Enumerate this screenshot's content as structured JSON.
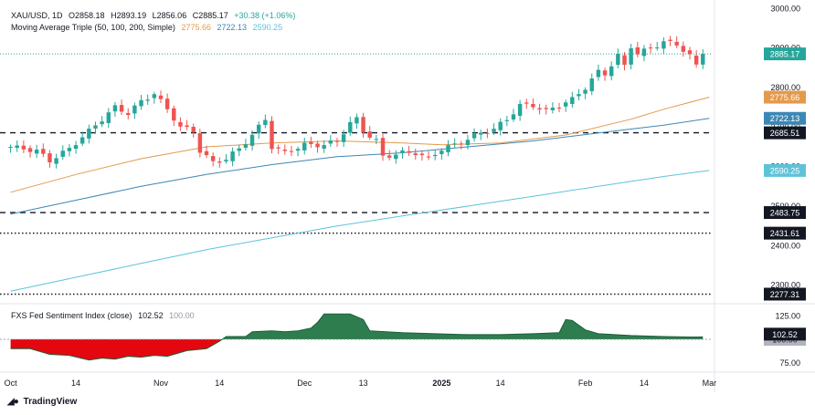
{
  "header": {
    "symbol": "XAU/USD, 1D",
    "open": "O2858.18",
    "high": "H2893.19",
    "low": "L2856.06",
    "close": "C2885.17",
    "change": "+30.38 (+1.06%)",
    "ma_label": "Moving Average Triple (50, 100, 200, Simple)",
    "ma50_value": "2775.66",
    "ma100_value": "2722.13",
    "ma200_value": "2590.25"
  },
  "sentiment_pane": {
    "title": "FXS Fed Sentiment Index (close)",
    "value": "102.52",
    "baseline": "100.00"
  },
  "footer": {
    "brand": "TradingView"
  },
  "colors": {
    "up": "#26a69a",
    "down": "#ef5350",
    "ma50": "#e39a4c",
    "ma100": "#3d87b5",
    "ma200": "#5ec3d9",
    "sentiment_pos": "#2e7d4f",
    "sentiment_neg": "#e5070f",
    "axis_text": "#131722"
  },
  "chart_data": {
    "type": "candlestick",
    "instrument": "XAU/USD",
    "timeframe": "1D",
    "y_axis_ticks": [
      2300.0,
      2400.0,
      2500.0,
      2600.0,
      2700.0,
      2800.0,
      2900.0,
      3000.0
    ],
    "ylim": [
      2260,
      3010
    ],
    "x_axis_labels": [
      {
        "label": "Oct",
        "bar": 0
      },
      {
        "label": "14",
        "bar": 10
      },
      {
        "label": "Nov",
        "bar": 23
      },
      {
        "label": "14",
        "bar": 32
      },
      {
        "label": "Dec",
        "bar": 45
      },
      {
        "label": "13",
        "bar": 54
      },
      {
        "label": "2025",
        "bar": 66
      },
      {
        "label": "14",
        "bar": 75
      },
      {
        "label": "Feb",
        "bar": 88
      },
      {
        "label": "14",
        "bar": 97
      },
      {
        "label": "Mar",
        "bar": 107
      }
    ],
    "horizontal_levels": [
      {
        "value": 2685.51,
        "label": "2685.51",
        "style": "dashed"
      },
      {
        "value": 2483.75,
        "label": "2483.75",
        "style": "dashed"
      },
      {
        "value": 2431.61,
        "label": "2431.61",
        "style": "dotted"
      },
      {
        "value": 2277.31,
        "label": "2277.31",
        "style": "dotted"
      }
    ],
    "last_price": {
      "value": 2885.17,
      "label": "2885.17"
    },
    "moving_averages": [
      {
        "name": "MA 50",
        "period": 50,
        "last": 2775.66,
        "label": "2775.66",
        "points": [
          [
            0,
            2535
          ],
          [
            10,
            2580
          ],
          [
            20,
            2620
          ],
          [
            30,
            2650
          ],
          [
            40,
            2660
          ],
          [
            50,
            2665
          ],
          [
            60,
            2660
          ],
          [
            66,
            2655
          ],
          [
            75,
            2660
          ],
          [
            85,
            2680
          ],
          [
            95,
            2720
          ],
          [
            100,
            2745
          ],
          [
            107,
            2775.66
          ]
        ]
      },
      {
        "name": "MA 100",
        "period": 100,
        "last": 2722.13,
        "label": "2722.13",
        "points": [
          [
            0,
            2480
          ],
          [
            10,
            2515
          ],
          [
            20,
            2550
          ],
          [
            30,
            2580
          ],
          [
            40,
            2605
          ],
          [
            50,
            2625
          ],
          [
            60,
            2635
          ],
          [
            70,
            2650
          ],
          [
            80,
            2665
          ],
          [
            90,
            2685
          ],
          [
            100,
            2705
          ],
          [
            107,
            2722.13
          ]
        ]
      },
      {
        "name": "MA 200",
        "period": 200,
        "last": 2590.25,
        "label": "2590.25",
        "points": [
          [
            0,
            2285
          ],
          [
            10,
            2320
          ],
          [
            20,
            2355
          ],
          [
            30,
            2390
          ],
          [
            40,
            2420
          ],
          [
            50,
            2450
          ],
          [
            60,
            2475
          ],
          [
            70,
            2500
          ],
          [
            80,
            2525
          ],
          [
            90,
            2550
          ],
          [
            100,
            2575
          ],
          [
            107,
            2590.25
          ]
        ]
      }
    ],
    "close_path": [
      [
        0,
        2650
      ],
      [
        4,
        2640
      ],
      [
        6,
        2615
      ],
      [
        9,
        2645
      ],
      [
        12,
        2690
      ],
      [
        14,
        2720
      ],
      [
        16,
        2750
      ],
      [
        18,
        2735
      ],
      [
        20,
        2765
      ],
      [
        22,
        2785
      ],
      [
        24,
        2745
      ],
      [
        26,
        2700
      ],
      [
        28,
        2690
      ],
      [
        29,
        2640
      ],
      [
        31,
        2610
      ],
      [
        33,
        2620
      ],
      [
        35,
        2645
      ],
      [
        37,
        2680
      ],
      [
        39,
        2720
      ],
      [
        40,
        2650
      ],
      [
        42,
        2635
      ],
      [
        45,
        2655
      ],
      [
        48,
        2655
      ],
      [
        50,
        2665
      ],
      [
        52,
        2710
      ],
      [
        53,
        2720
      ],
      [
        54,
        2690
      ],
      [
        56,
        2665
      ],
      [
        57,
        2625
      ],
      [
        60,
        2635
      ],
      [
        62,
        2635
      ],
      [
        64,
        2620
      ],
      [
        66,
        2645
      ],
      [
        68,
        2655
      ],
      [
        70,
        2670
      ],
      [
        72,
        2685
      ],
      [
        74,
        2695
      ],
      [
        76,
        2720
      ],
      [
        78,
        2755
      ],
      [
        80,
        2755
      ],
      [
        82,
        2740
      ],
      [
        84,
        2755
      ],
      [
        86,
        2770
      ],
      [
        88,
        2800
      ],
      [
        90,
        2840
      ],
      [
        91,
        2835
      ],
      [
        93,
        2880
      ],
      [
        94,
        2855
      ],
      [
        95,
        2905
      ],
      [
        96,
        2885
      ],
      [
        98,
        2900
      ],
      [
        100,
        2915
      ],
      [
        102,
        2910
      ],
      [
        103,
        2895
      ],
      [
        104,
        2880
      ],
      [
        105,
        2855
      ],
      [
        106,
        2885.17
      ]
    ],
    "sentiment": {
      "name": "FXS Fed Sentiment Index (close)",
      "y_axis_ticks": [
        75.0,
        100.0,
        125.0
      ],
      "ylim": [
        68,
        135
      ],
      "last": 102.52,
      "baseline": 100.0,
      "points": [
        [
          0,
          90
        ],
        [
          3,
          90
        ],
        [
          6,
          84
        ],
        [
          9,
          83
        ],
        [
          12,
          78
        ],
        [
          14,
          80
        ],
        [
          16,
          79
        ],
        [
          18,
          82
        ],
        [
          20,
          81
        ],
        [
          22,
          83
        ],
        [
          24,
          82
        ],
        [
          27,
          88
        ],
        [
          30,
          90
        ],
        [
          32,
          98
        ],
        [
          33,
          103
        ],
        [
          36,
          103
        ],
        [
          37,
          108
        ],
        [
          40,
          109
        ],
        [
          42,
          108
        ],
        [
          44,
          109
        ],
        [
          46,
          112
        ],
        [
          47,
          118
        ],
        [
          48,
          127
        ],
        [
          52,
          127
        ],
        [
          54,
          121
        ],
        [
          55,
          109
        ],
        [
          60,
          107
        ],
        [
          65,
          106
        ],
        [
          70,
          105
        ],
        [
          75,
          105
        ],
        [
          80,
          106
        ],
        [
          84,
          107
        ],
        [
          85,
          121
        ],
        [
          86,
          120
        ],
        [
          88,
          110
        ],
        [
          90,
          106
        ],
        [
          95,
          104
        ],
        [
          100,
          103
        ],
        [
          104,
          102.5
        ],
        [
          106,
          102.52
        ]
      ]
    }
  }
}
